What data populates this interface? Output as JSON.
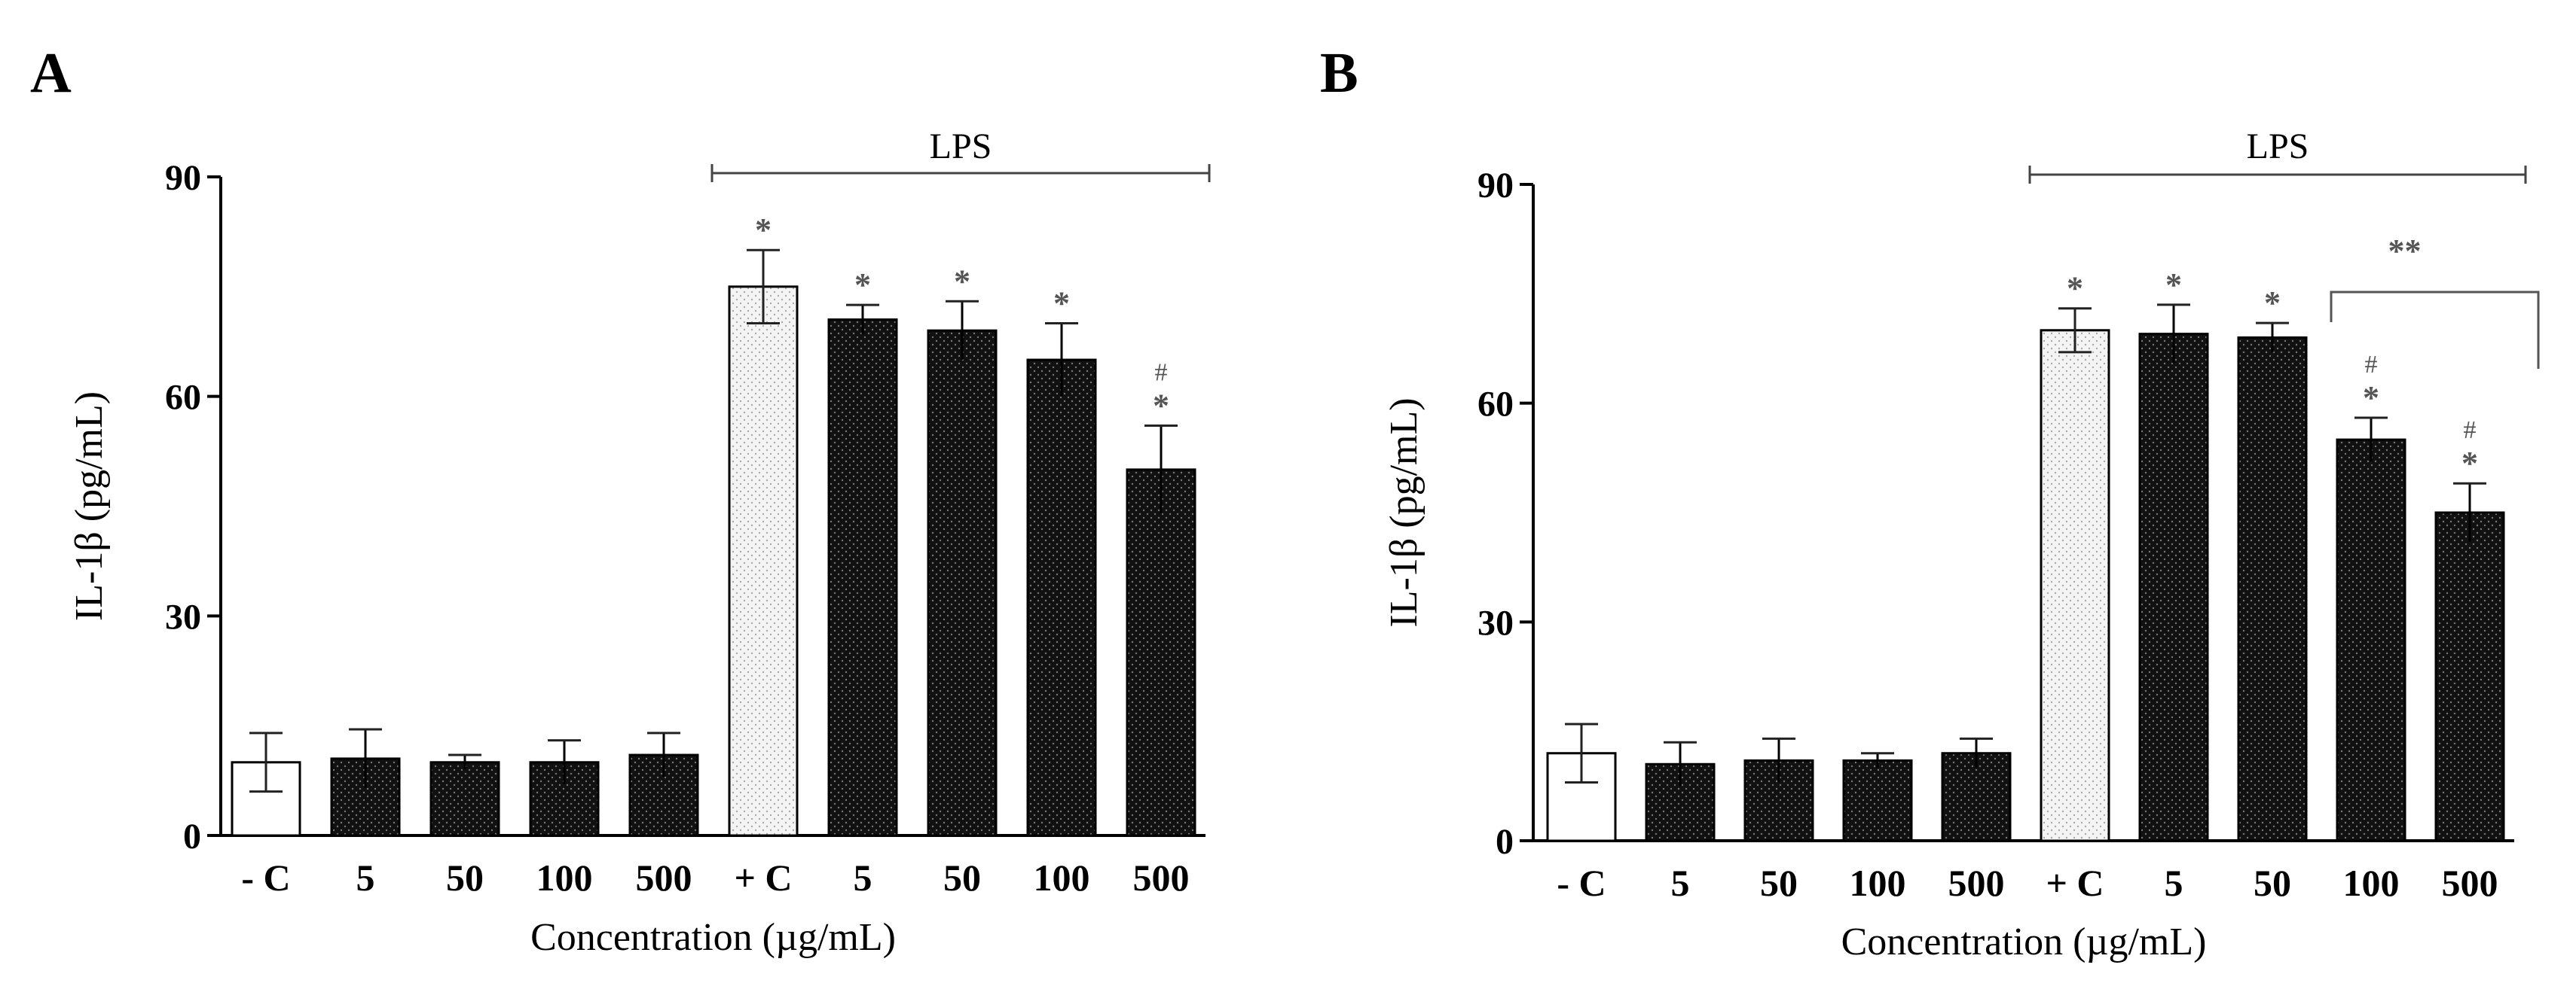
{
  "chart_data": [
    {
      "type": "bar",
      "panel_label": "A",
      "ylabel": "IL-1β (pg/mL)",
      "xlabel": "Concentration (µg/mL)",
      "ylim": [
        0,
        90
      ],
      "yticks": [
        "0",
        "30",
        "60",
        "90"
      ],
      "categories": [
        "- C",
        "5",
        "50",
        "100",
        "500",
        "+ C",
        "5",
        "50",
        "100",
        "500"
      ],
      "values": [
        10,
        10.5,
        10,
        10,
        11,
        75,
        70.5,
        69,
        65,
        50
      ],
      "errors": [
        4,
        4,
        1,
        3,
        3,
        5,
        2,
        4,
        5,
        6
      ],
      "fills": [
        "white",
        "black",
        "black",
        "black",
        "black",
        "light",
        "black",
        "black",
        "black",
        "black"
      ],
      "group_bracket": {
        "label": "LPS",
        "from_index": 5,
        "to_index": 9
      },
      "annotations": [
        {
          "index": 5,
          "marks": [
            "*"
          ]
        },
        {
          "index": 6,
          "marks": [
            "*"
          ]
        },
        {
          "index": 7,
          "marks": [
            "*"
          ]
        },
        {
          "index": 8,
          "marks": [
            "*"
          ]
        },
        {
          "index": 9,
          "marks": [
            "#",
            "*"
          ]
        }
      ],
      "comparison_bracket": null
    },
    {
      "type": "bar",
      "panel_label": "B",
      "ylabel": "IL-1β (pg/mL)",
      "xlabel": "Concentration (µg/mL)",
      "ylim": [
        0,
        90
      ],
      "yticks": [
        "0",
        "30",
        "60",
        "90"
      ],
      "categories": [
        "- C",
        "5",
        "50",
        "100",
        "500",
        "+ C",
        "5",
        "50",
        "100",
        "500"
      ],
      "values": [
        12,
        10.5,
        11,
        11,
        12,
        70,
        69.5,
        69,
        55,
        45
      ],
      "errors": [
        4,
        3,
        3,
        1,
        2,
        3,
        4,
        2,
        3,
        4
      ],
      "fills": [
        "white",
        "black",
        "black",
        "black",
        "black",
        "light",
        "black",
        "black",
        "black",
        "black"
      ],
      "group_bracket": {
        "label": "LPS",
        "from_index": 5,
        "to_index": 9
      },
      "annotations": [
        {
          "index": 5,
          "marks": [
            "*"
          ]
        },
        {
          "index": 6,
          "marks": [
            "*"
          ]
        },
        {
          "index": 7,
          "marks": [
            "*"
          ]
        },
        {
          "index": 8,
          "marks": [
            "#",
            "*"
          ]
        },
        {
          "index": 9,
          "marks": [
            "#",
            "*"
          ]
        }
      ],
      "comparison_bracket": {
        "label": "**",
        "from_index": 8,
        "to_index": 9
      }
    }
  ]
}
